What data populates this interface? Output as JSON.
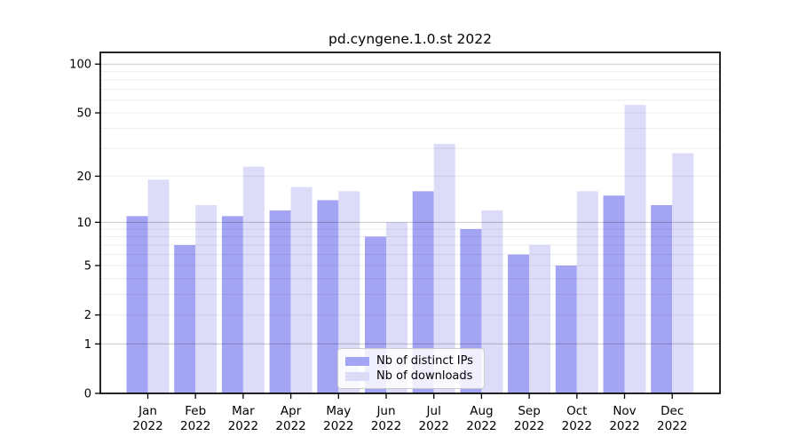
{
  "chart_data": {
    "type": "bar",
    "title": "pd.cyngene.1.0.st 2022",
    "categories": [
      "Jan 2022",
      "Feb 2022",
      "Mar 2022",
      "Apr 2022",
      "May 2022",
      "Jun 2022",
      "Jul 2022",
      "Aug 2022",
      "Sep 2022",
      "Oct 2022",
      "Nov 2022",
      "Dec 2022"
    ],
    "series": [
      {
        "name": "Nb of distinct IPs",
        "color": "#a4a4f4",
        "values": [
          11,
          7,
          11,
          12,
          14,
          8,
          16,
          9,
          6,
          5,
          15,
          13
        ]
      },
      {
        "name": "Nb of downloads",
        "color": "#dcdcf8",
        "values": [
          19,
          13,
          23,
          17,
          16,
          10,
          32,
          12,
          7,
          16,
          56,
          28
        ]
      }
    ],
    "xlabel": "",
    "ylabel": "",
    "yticks": [
      0,
      1,
      2,
      5,
      10,
      20,
      50,
      100
    ],
    "ylim": [
      0,
      110
    ],
    "yscale": "log1p",
    "grid": "horizontal, minor lines light / major lines at 1,10,100, drawn over bars",
    "legend_position": "lower center",
    "colors": {
      "frame": "#000000",
      "major_grid": "rgba(0,0,0,0.22)",
      "minor_grid": "rgba(0,0,0,0.07)",
      "background": "#ffffff"
    }
  }
}
